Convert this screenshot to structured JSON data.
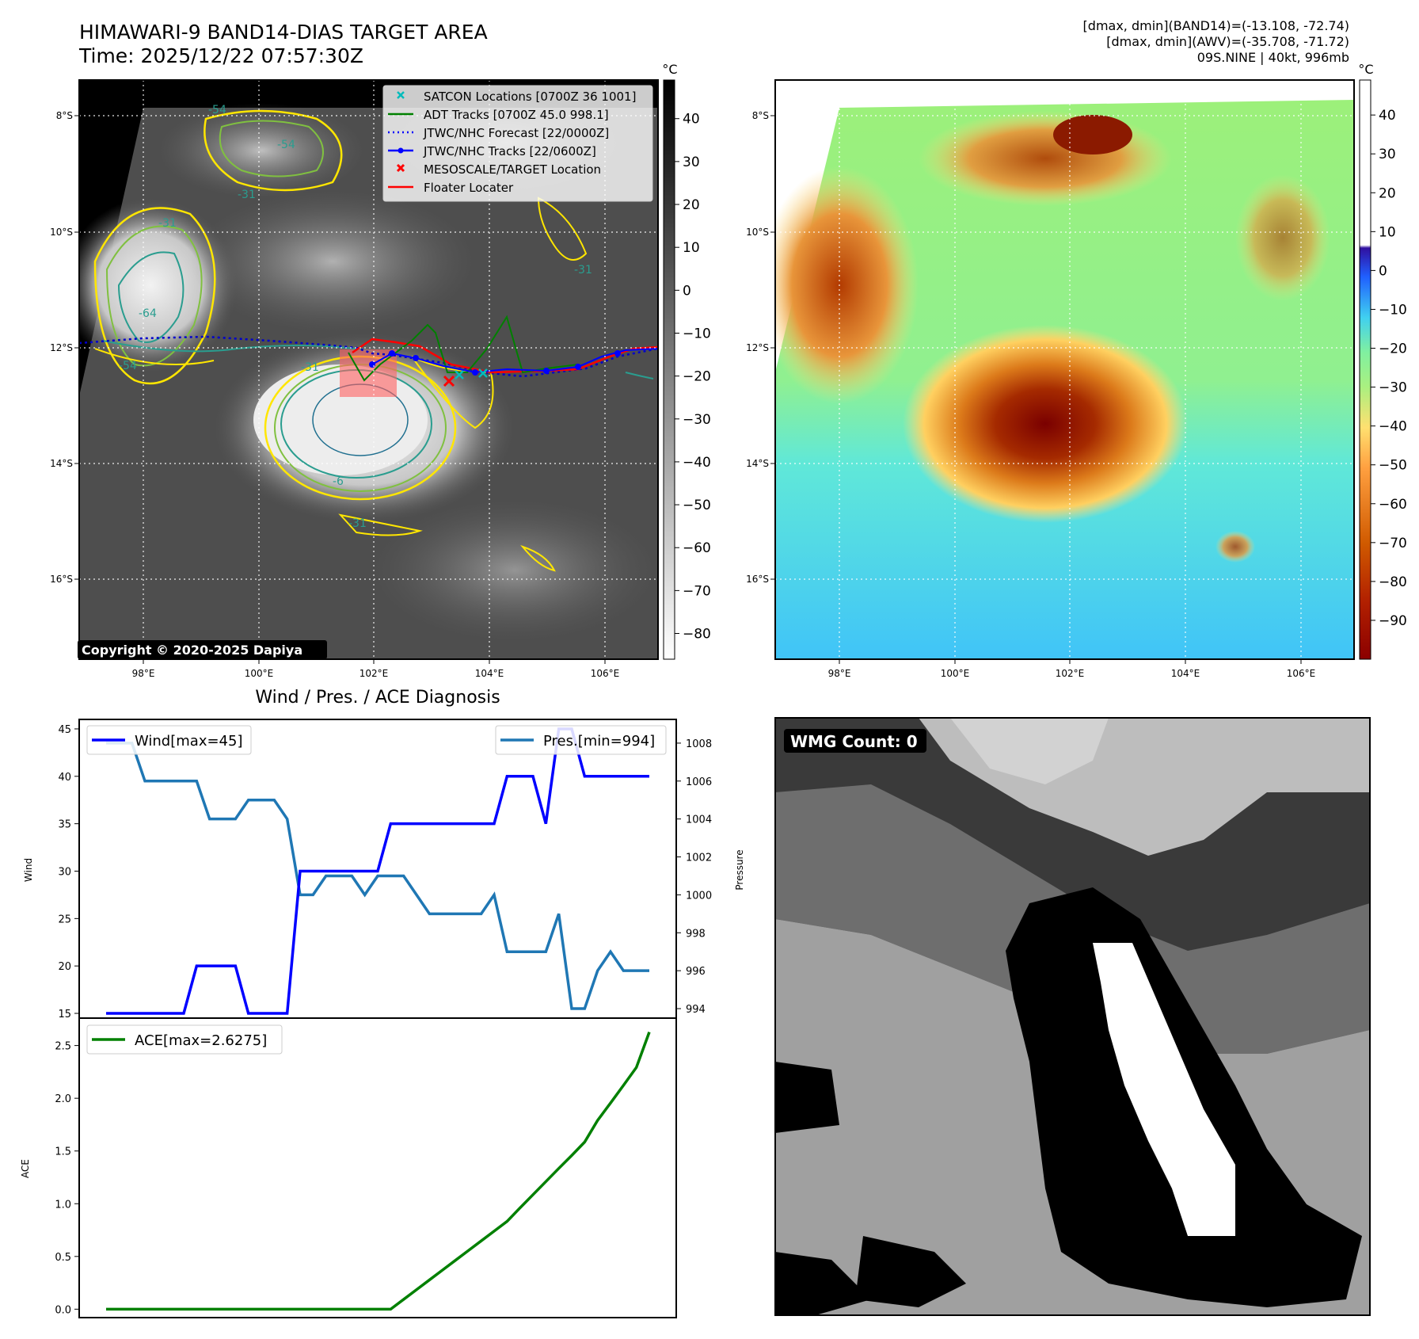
{
  "header": {
    "title_line1": "HIMAWARI-9 BAND14-DIAS TARGET AREA",
    "title_line2": "Time: 2025/12/22 07:57:30Z",
    "info_line1": "[dmax, dmin](BAND14)=(-13.108, -72.74)",
    "info_line2": "[dmax, dmin](AWV)=(-35.708, -71.72)",
    "info_line3": "09S.NINE | 40kt, 996mb"
  },
  "map_axes": {
    "lon_ticks": [
      "98°E",
      "100°E",
      "102°E",
      "104°E",
      "106°E"
    ],
    "lat_ticks": [
      "8°S",
      "10°S",
      "12°S",
      "14°S",
      "16°S"
    ]
  },
  "ir_panel": {
    "copyright": "Copyright © 2020-2025 Dapiya",
    "colorbar_unit": "°C",
    "colorbar_ticks": [
      "40",
      "30",
      "20",
      "10",
      "0",
      "−10",
      "−20",
      "−30",
      "−40",
      "−50",
      "−60",
      "−70",
      "−80"
    ],
    "contour_labels": [
      "-54",
      "-54",
      "-31",
      "-64",
      "-54",
      "-31",
      "-6",
      "-31",
      "-31",
      "-31"
    ],
    "legend": [
      {
        "label": "SATCON Locations [0700Z 36 1001]",
        "color": "#00bcbc",
        "icon": "x-marker-icon"
      },
      {
        "label": "ADT Tracks [0700Z 45.0 998.1]",
        "color": "#008000",
        "icon": "line-icon"
      },
      {
        "label": "JTWC/NHC Forecast [22/0000Z]",
        "color": "#0000ff",
        "icon": "dotted-line-icon"
      },
      {
        "label": "JTWC/NHC Tracks [22/0600Z]",
        "color": "#0000ff",
        "icon": "line-dot-icon"
      },
      {
        "label": "MESOSCALE/TARGET Location",
        "color": "#ff0000",
        "icon": "x-marker-icon"
      },
      {
        "label": "Floater Locater",
        "color": "#ff0000",
        "icon": "line-icon"
      }
    ]
  },
  "awv_panel": {
    "colorbar_unit": "°C",
    "colorbar_ticks": [
      "40",
      "30",
      "20",
      "10",
      "0",
      "−10",
      "−20",
      "−30",
      "−40",
      "−50",
      "−60",
      "−70",
      "−80",
      "−90"
    ]
  },
  "wmg_panel": {
    "label": "WMG Count: 0"
  },
  "colors": {
    "wind": "#0000ff",
    "pressure": "#1f77b4",
    "ace": "#008000",
    "floater": "#ff0000"
  },
  "chart_data": [
    {
      "type": "line",
      "title": "Wind / Pres. / ACE Diagnosis",
      "ylabel": "Wind",
      "y2label": "Pressure",
      "ylim": [
        14.5,
        46
      ],
      "y2lim": [
        993.5,
        1009.25
      ],
      "yticks": [
        "15",
        "20",
        "25",
        "30",
        "35",
        "40",
        "45"
      ],
      "y2ticks": [
        "994",
        "996",
        "998",
        "1000",
        "1002",
        "1004",
        "1006",
        "1008"
      ],
      "x": [
        0,
        1,
        2,
        3,
        4,
        5,
        6,
        7,
        8,
        9,
        10,
        11,
        12,
        13,
        14,
        15,
        16,
        17,
        18,
        19,
        20,
        21,
        22,
        23,
        24,
        25,
        26,
        27,
        28,
        29,
        30,
        31,
        32,
        33,
        34,
        35,
        36,
        37,
        38,
        39,
        40,
        41,
        42
      ],
      "series": [
        {
          "name": "Wind[max=45]",
          "axis": "left",
          "values": [
            15,
            15,
            15,
            15,
            15,
            15,
            15,
            20,
            20,
            20,
            20,
            15,
            15,
            15,
            15,
            30,
            30,
            30,
            30,
            30,
            30,
            30,
            35,
            35,
            35,
            35,
            35,
            35,
            35,
            35,
            35,
            40,
            40,
            40,
            35,
            45,
            45,
            40,
            40,
            40,
            40,
            40,
            40
          ]
        },
        {
          "name": "Pres.[min=994]",
          "axis": "right",
          "values": [
            1008,
            1008,
            1008,
            1006,
            1006,
            1006,
            1006,
            1006,
            1004,
            1004,
            1004,
            1005,
            1005,
            1005,
            1004,
            1000,
            1000,
            1001,
            1001,
            1001,
            1000,
            1001,
            1001,
            1001,
            1000,
            999,
            999,
            999,
            999,
            999,
            1000,
            997,
            997,
            997,
            997,
            999,
            994,
            994,
            996,
            997,
            996,
            996,
            996
          ]
        }
      ]
    },
    {
      "type": "line",
      "ylabel": "ACE",
      "ylim": [
        -0.08,
        2.76
      ],
      "yticks": [
        "0.0",
        "0.5",
        "1.0",
        "1.5",
        "2.0",
        "2.5"
      ],
      "x": [
        0,
        1,
        2,
        3,
        4,
        5,
        6,
        7,
        8,
        9,
        10,
        11,
        12,
        13,
        14,
        15,
        16,
        17,
        18,
        19,
        20,
        21,
        22,
        23,
        24,
        25,
        26,
        27,
        28,
        29,
        30,
        31,
        32,
        33,
        34,
        35,
        36,
        37,
        38,
        39,
        40,
        41,
        42
      ],
      "series": [
        {
          "name": "ACE[max=2.6275]",
          "values": [
            0,
            0,
            0,
            0,
            0,
            0,
            0,
            0,
            0,
            0,
            0,
            0,
            0,
            0,
            0,
            0,
            0,
            0,
            0,
            0,
            0,
            0,
            0,
            0.0925,
            0.185,
            0.2775,
            0.37,
            0.4625,
            0.555,
            0.6475,
            0.74,
            0.8325,
            0.96,
            1.085,
            1.21,
            1.335,
            1.4575,
            1.585,
            1.79,
            1.955,
            2.1225,
            2.2925,
            2.6275
          ]
        }
      ]
    }
  ]
}
